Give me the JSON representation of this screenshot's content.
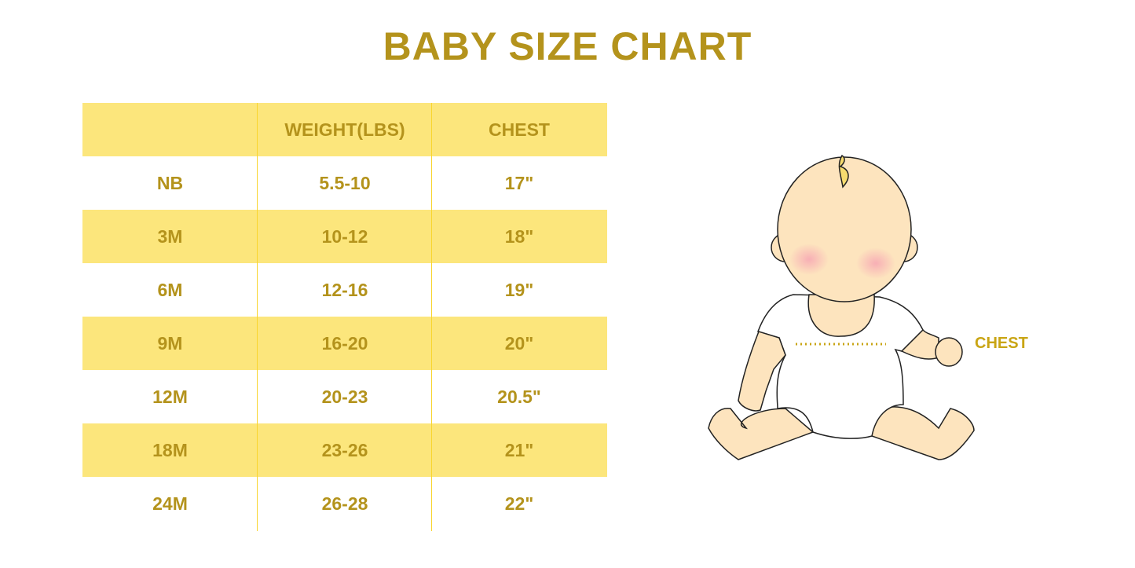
{
  "title": "BABY SIZE CHART",
  "table": {
    "headers": [
      "",
      "WEIGHT(LBS)",
      "CHEST"
    ],
    "rows": [
      [
        "NB",
        "5.5-10",
        "17\""
      ],
      [
        "3M",
        "10-12",
        "18\""
      ],
      [
        "6M",
        "12-16",
        "19\""
      ],
      [
        "9M",
        "16-20",
        "20\""
      ],
      [
        "12M",
        "20-23",
        "20.5\""
      ],
      [
        "18M",
        "23-26",
        "21\""
      ],
      [
        "24M",
        "26-28",
        "22\""
      ]
    ]
  },
  "illustration": {
    "label": "CHEST"
  },
  "colors": {
    "accent_text": "#B4931C",
    "row_shade": "#FCE67C",
    "divider": "#F9D52E",
    "skin": "#FDE4BE"
  }
}
